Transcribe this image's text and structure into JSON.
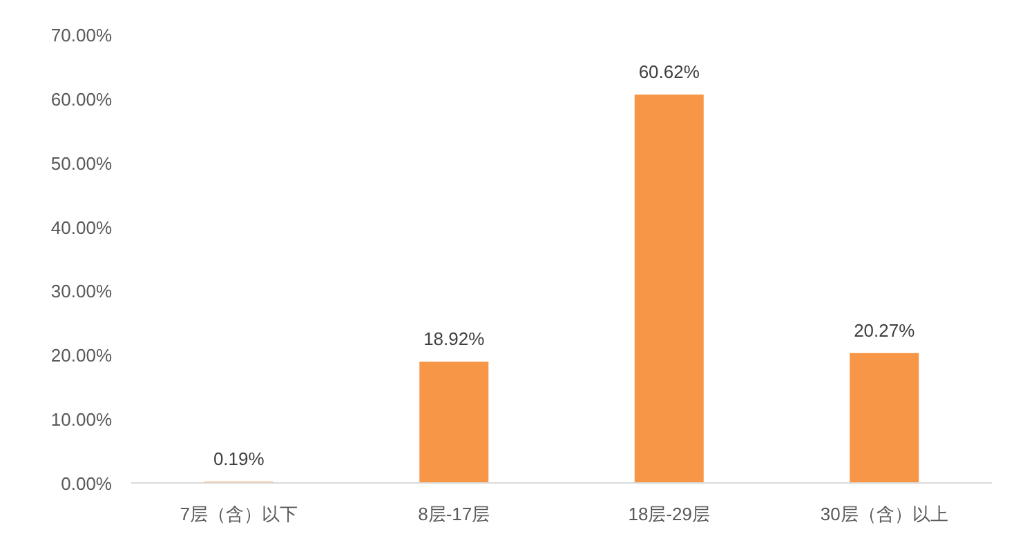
{
  "chart_data": {
    "type": "bar",
    "categories": [
      "7层（含）以下",
      "8层-17层",
      "18层-29层",
      "30层（含）以上"
    ],
    "values": [
      0.19,
      18.92,
      60.62,
      20.27
    ],
    "value_labels": [
      "0.19%",
      "18.92%",
      "60.62%",
      "20.27%"
    ],
    "color": "#f79646",
    "ylim": [
      0,
      70
    ],
    "yticks": [
      {
        "value": 0,
        "label": "0.00%"
      },
      {
        "value": 10,
        "label": "10.00%"
      },
      {
        "value": 20,
        "label": "20.00%"
      },
      {
        "value": 30,
        "label": "30.00%"
      },
      {
        "value": 40,
        "label": "40.00%"
      },
      {
        "value": 50,
        "label": "50.00%"
      },
      {
        "value": 60,
        "label": "60.00%"
      },
      {
        "value": 70,
        "label": "70.00%"
      }
    ],
    "grid": false
  }
}
